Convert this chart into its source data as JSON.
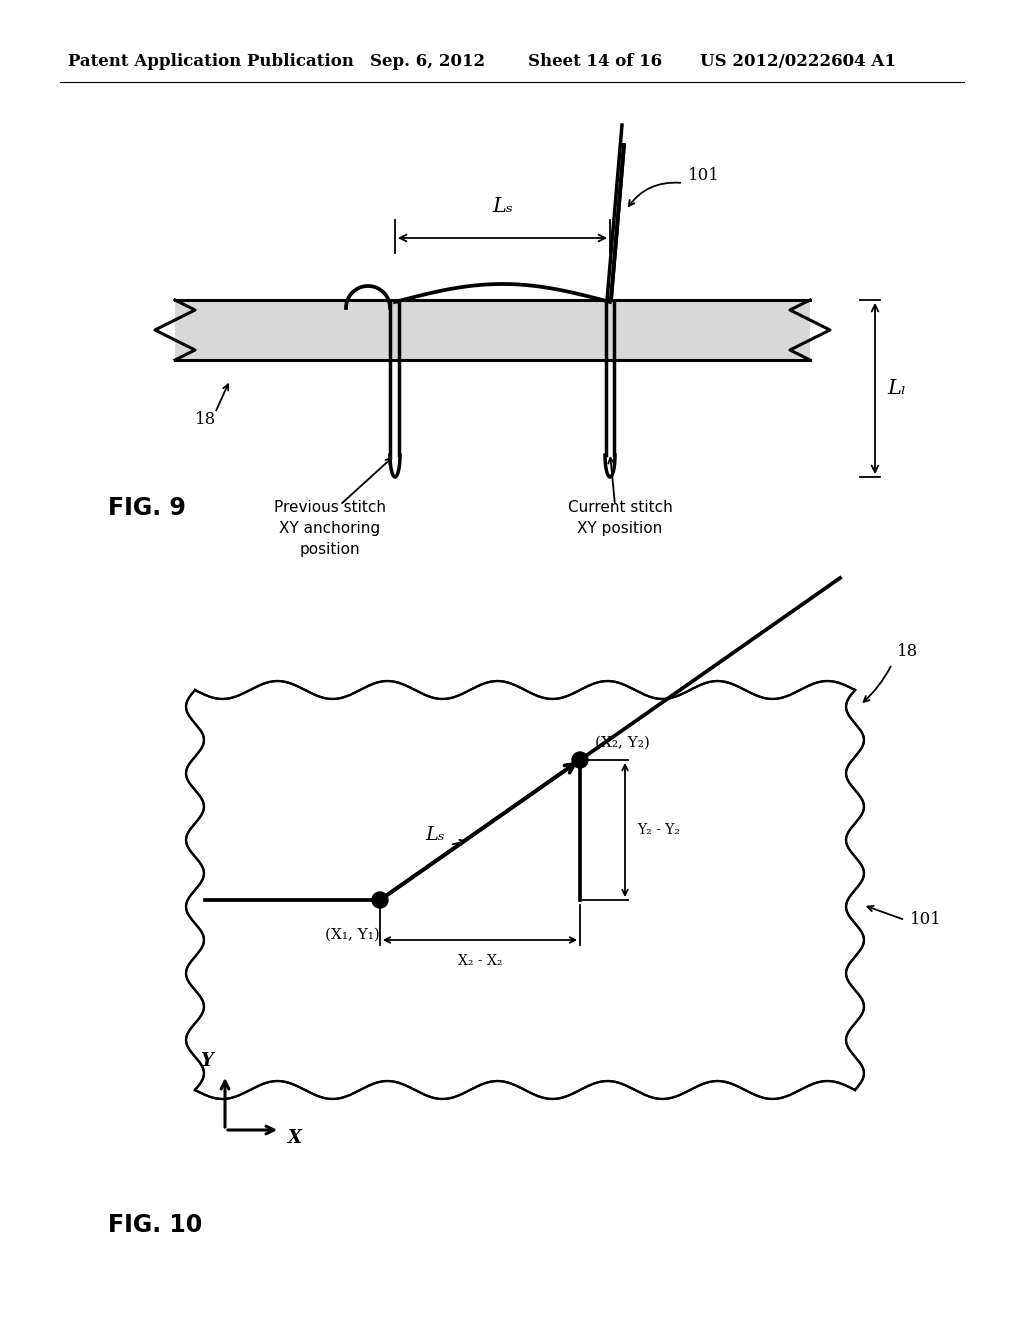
{
  "bg_color": "#ffffff",
  "header_text": "Patent Application Publication",
  "header_date": "Sep. 6, 2012",
  "header_sheet": "Sheet 14 of 16",
  "header_patent": "US 2012/0222604 A1",
  "fig9_label": "FIG. 9",
  "fig10_label": "FIG. 10",
  "label_101_fig9": "101",
  "label_18_fig9": "18",
  "label_Ls_fig9": "Lₛ",
  "label_LL_fig9": "Lₗ",
  "label_prev_stitch": "Previous stitch\nXY anchoring\nposition",
  "label_curr_stitch": "Current stitch\nXY position",
  "label_18_fig10": "18",
  "label_101_fig10": "101",
  "label_x1y1": "(X₁, Y₁)",
  "label_x2y2": "(X₂, Y₂)",
  "label_Ls_fig10": "Lₛ",
  "label_dx": "X₂ - X₂",
  "label_dy": "Y₂ - Y₂",
  "line_color": "#000000",
  "fabric_fill": "#d8d8d8",
  "dot_color": "#000000"
}
